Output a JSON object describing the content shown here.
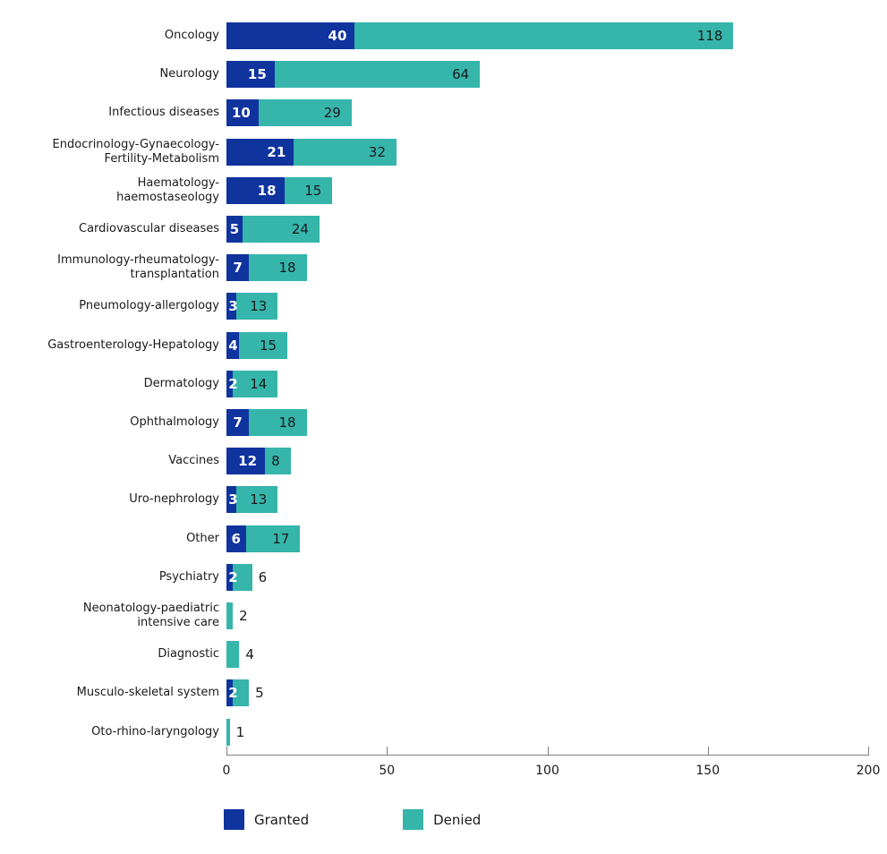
{
  "chart_data": {
    "type": "bar",
    "orientation": "horizontal",
    "stacked": true,
    "title": "",
    "xlabel": "",
    "ylabel": "",
    "xlim": [
      0,
      200
    ],
    "xticks": [
      "0",
      "50",
      "100",
      "150",
      "200"
    ],
    "grid": false,
    "legend_position": "bottom",
    "categories": [
      "Oncology",
      "Neurology",
      "Infectious diseases",
      "Endocrinology-Gynaecology-\nFertility-Metabolism",
      "Haematology-\nhaemostaseology",
      "Cardiovascular diseases",
      "Immunology-rheumatology-\ntransplantation",
      "Pneumology-allergology",
      "Gastroenterology-Hepatology",
      "Dermatology",
      "Ophthalmology",
      "Vaccines",
      "Uro-nephrology",
      "Other",
      "Psychiatry",
      "Neonatology-paediatric\nintensive care",
      "Diagnostic",
      "Musculo-skeletal system",
      "Oto-rhino-laryngology"
    ],
    "series": [
      {
        "name": "Granted",
        "color": "#10349E",
        "values": [
          40,
          15,
          10,
          21,
          18,
          5,
          7,
          3,
          4,
          2,
          7,
          12,
          3,
          6,
          2,
          0,
          0,
          2,
          0
        ]
      },
      {
        "name": "Denied",
        "color": "#36B5AB",
        "values": [
          118,
          64,
          29,
          32,
          15,
          24,
          18,
          13,
          15,
          14,
          18,
          8,
          13,
          17,
          6,
          2,
          4,
          5,
          1
        ]
      }
    ]
  },
  "colors": {
    "granted": "#10349E",
    "denied": "#36B5AB",
    "axis": "#7f7f7f",
    "text": "#1a1a1a",
    "granted_value_text": "#ffffff",
    "denied_value_text": "#1a1a1a",
    "background": "#ffffff"
  }
}
